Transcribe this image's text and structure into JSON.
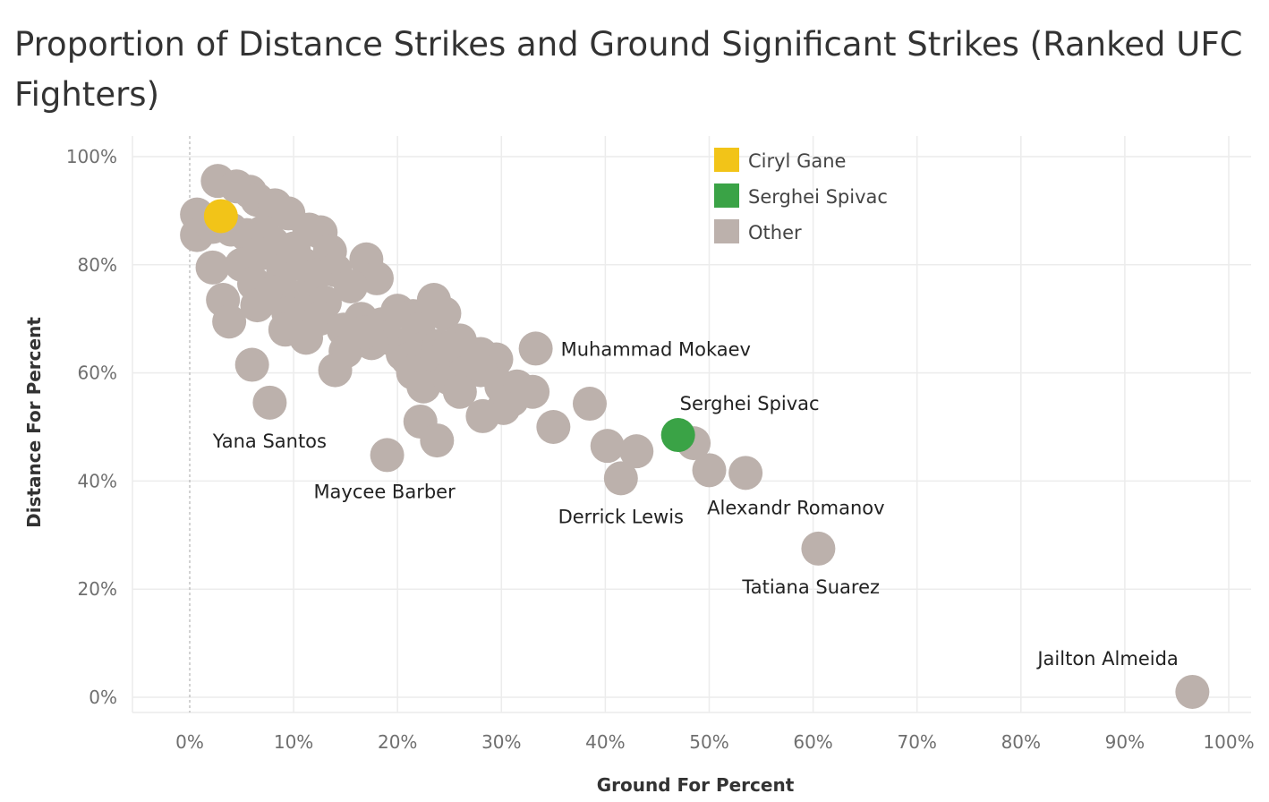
{
  "chart_data": {
    "type": "scatter",
    "title": "Proportion of Distance Strikes and Ground Significant Strikes (Ranked UFC Fighters)",
    "xlabel": "Ground For Percent",
    "ylabel": "Distance For Percent",
    "xlim": [
      0,
      100
    ],
    "ylim": [
      0,
      100
    ],
    "x_ticks": [
      "0%",
      "10%",
      "20%",
      "30%",
      "40%",
      "50%",
      "60%",
      "70%",
      "80%",
      "90%",
      "100%"
    ],
    "y_ticks": [
      "0%",
      "20%",
      "40%",
      "60%",
      "80%",
      "100%"
    ],
    "grid": true,
    "legend_position": "top-center",
    "colors": {
      "Ciryl Gane": "#f2c418",
      "Serghei Spivac": "#3aa346",
      "Other": "#bcb1ac"
    },
    "legend": [
      "Ciryl Gane",
      "Serghei Spivac",
      "Other"
    ],
    "series": [
      {
        "name": "Ciryl Gane",
        "points": [
          [
            3,
            89
          ]
        ]
      },
      {
        "name": "Serghei Spivac",
        "points": [
          [
            47,
            48.5
          ]
        ]
      },
      {
        "name": "Other",
        "points": [
          [
            2.7,
            95.5
          ],
          [
            4.5,
            94.5
          ],
          [
            5.8,
            93.5
          ],
          [
            6.5,
            92
          ],
          [
            8.2,
            91
          ],
          [
            9.5,
            89.5
          ],
          [
            0.7,
            89.3
          ],
          [
            0.7,
            85.5
          ],
          [
            2.2,
            87
          ],
          [
            4,
            86.5
          ],
          [
            5.5,
            85.5
          ],
          [
            7,
            86
          ],
          [
            11.5,
            86.5
          ],
          [
            12.6,
            86
          ],
          [
            8,
            84
          ],
          [
            10,
            83
          ],
          [
            13.5,
            82.5
          ],
          [
            14,
            79
          ],
          [
            2.2,
            79.5
          ],
          [
            5,
            80
          ],
          [
            6.7,
            82
          ],
          [
            9,
            79
          ],
          [
            11,
            80
          ],
          [
            12,
            78
          ],
          [
            17,
            81
          ],
          [
            18,
            77.5
          ],
          [
            15.5,
            76
          ],
          [
            6.2,
            76.5
          ],
          [
            8,
            75
          ],
          [
            10.5,
            74
          ],
          [
            13,
            73
          ],
          [
            6.5,
            72.5
          ],
          [
            3.2,
            73.5
          ],
          [
            9.5,
            71
          ],
          [
            12.5,
            70
          ],
          [
            14.8,
            68
          ],
          [
            16.5,
            70
          ],
          [
            18.5,
            69
          ],
          [
            20,
            71.5
          ],
          [
            21.5,
            70.5
          ],
          [
            23.5,
            73.5
          ],
          [
            24.5,
            71
          ],
          [
            22,
            68
          ],
          [
            19,
            66.5
          ],
          [
            17.5,
            65.5
          ],
          [
            15,
            64
          ],
          [
            20.5,
            63.5
          ],
          [
            21,
            62.5
          ],
          [
            22.5,
            64.5
          ],
          [
            24,
            65
          ],
          [
            26,
            66
          ],
          [
            25,
            64.5
          ],
          [
            23,
            61.5
          ],
          [
            21.5,
            60
          ],
          [
            22.5,
            57.5
          ],
          [
            25,
            59
          ],
          [
            26.5,
            60
          ],
          [
            28,
            63.5
          ],
          [
            29.5,
            62.5
          ],
          [
            28,
            60.5
          ],
          [
            26,
            56.5
          ],
          [
            30,
            57.5
          ],
          [
            31.5,
            57.5
          ],
          [
            33,
            56.5
          ],
          [
            31,
            55
          ],
          [
            30.2,
            53.5
          ],
          [
            28.2,
            52
          ],
          [
            22.2,
            51
          ],
          [
            23.8,
            47.5
          ],
          [
            35,
            50
          ],
          [
            38.5,
            54.3
          ],
          [
            40.2,
            46.5
          ],
          [
            43,
            45.5
          ],
          [
            41.5,
            40.5
          ],
          [
            48.5,
            47
          ],
          [
            50,
            42
          ],
          [
            53.5,
            41.5
          ],
          [
            60.5,
            27.5
          ],
          [
            96.5,
            1
          ],
          [
            33.3,
            64.5
          ],
          [
            3.8,
            69.5
          ],
          [
            6,
            61.5
          ],
          [
            7.7,
            54.5
          ],
          [
            14,
            60.5
          ],
          [
            19,
            44.8
          ],
          [
            9.2,
            68
          ],
          [
            11.2,
            66.5
          ],
          [
            16.8,
            67.5
          ]
        ]
      }
    ],
    "annotations": [
      {
        "text": "Muhammad Mokaev",
        "x": 33.3,
        "y": 64.5
      },
      {
        "text": "Serghei Spivac",
        "x": 47,
        "y": 48.5
      },
      {
        "text": "Yana Santos",
        "x": 7.7,
        "y": 54.5
      },
      {
        "text": "Maycee Barber",
        "x": 19,
        "y": 44.8
      },
      {
        "text": "Derrick Lewis",
        "x": 41.5,
        "y": 40.5
      },
      {
        "text": "Alexandr Romanov",
        "x": 53.5,
        "y": 41.5
      },
      {
        "text": "Tatiana Suarez",
        "x": 60.5,
        "y": 27.5
      },
      {
        "text": "Jailton Almeida",
        "x": 96.5,
        "y": 1
      }
    ]
  }
}
